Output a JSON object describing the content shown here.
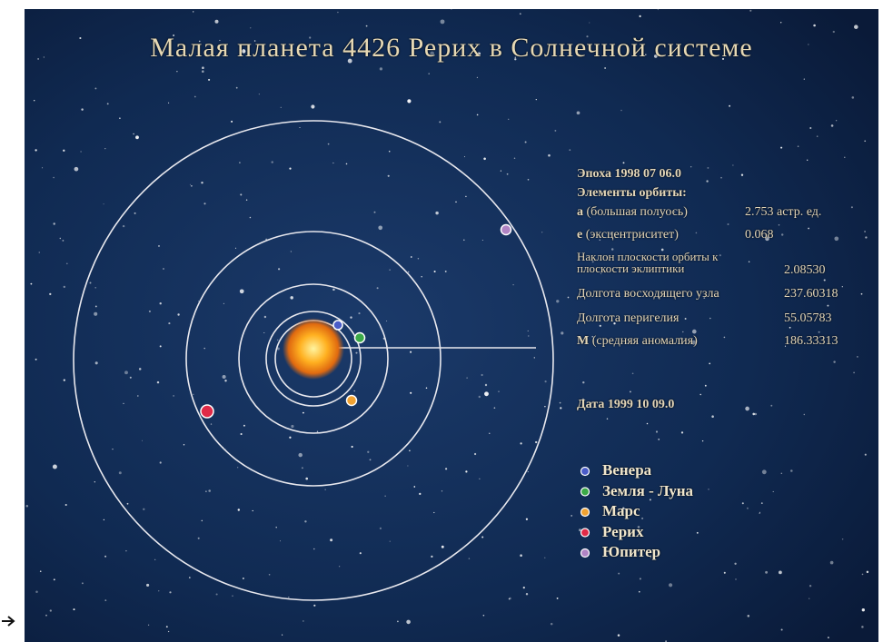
{
  "title": "Малая планета 4426 Рерих в Солнечной системе",
  "epoch": "Эпоха 1998 07 06.0",
  "elements_heading": "Элементы орбиты:",
  "elements": [
    {
      "symbol": "a",
      "label": "(большая полуось)",
      "value": "2.753 астр. ед."
    },
    {
      "symbol": "e",
      "label": "(эксцентриситет)",
      "value": "0.068"
    },
    {
      "label": "Наклон плоскости орбиты к плоскости эклиптики",
      "value": "2.08530"
    },
    {
      "label": "Долгота восходящего узла",
      "value": "237.60318"
    },
    {
      "label": "Долгота перигелия",
      "value": "55.05783"
    },
    {
      "symbol": "M",
      "label": "(средняя аномалия)",
      "value": "186.33313"
    }
  ],
  "date": "Дата 1999 10 09.0",
  "legend": [
    {
      "label": "Венера",
      "color": "#4a5cc8"
    },
    {
      "label": "Земля - Луна",
      "color": "#3caa48"
    },
    {
      "label": "Марс",
      "color": "#f0a232"
    },
    {
      "label": "Рерих",
      "color": "#e02a48"
    },
    {
      "label": "Юпитер",
      "color": "#b084c4"
    }
  ]
}
